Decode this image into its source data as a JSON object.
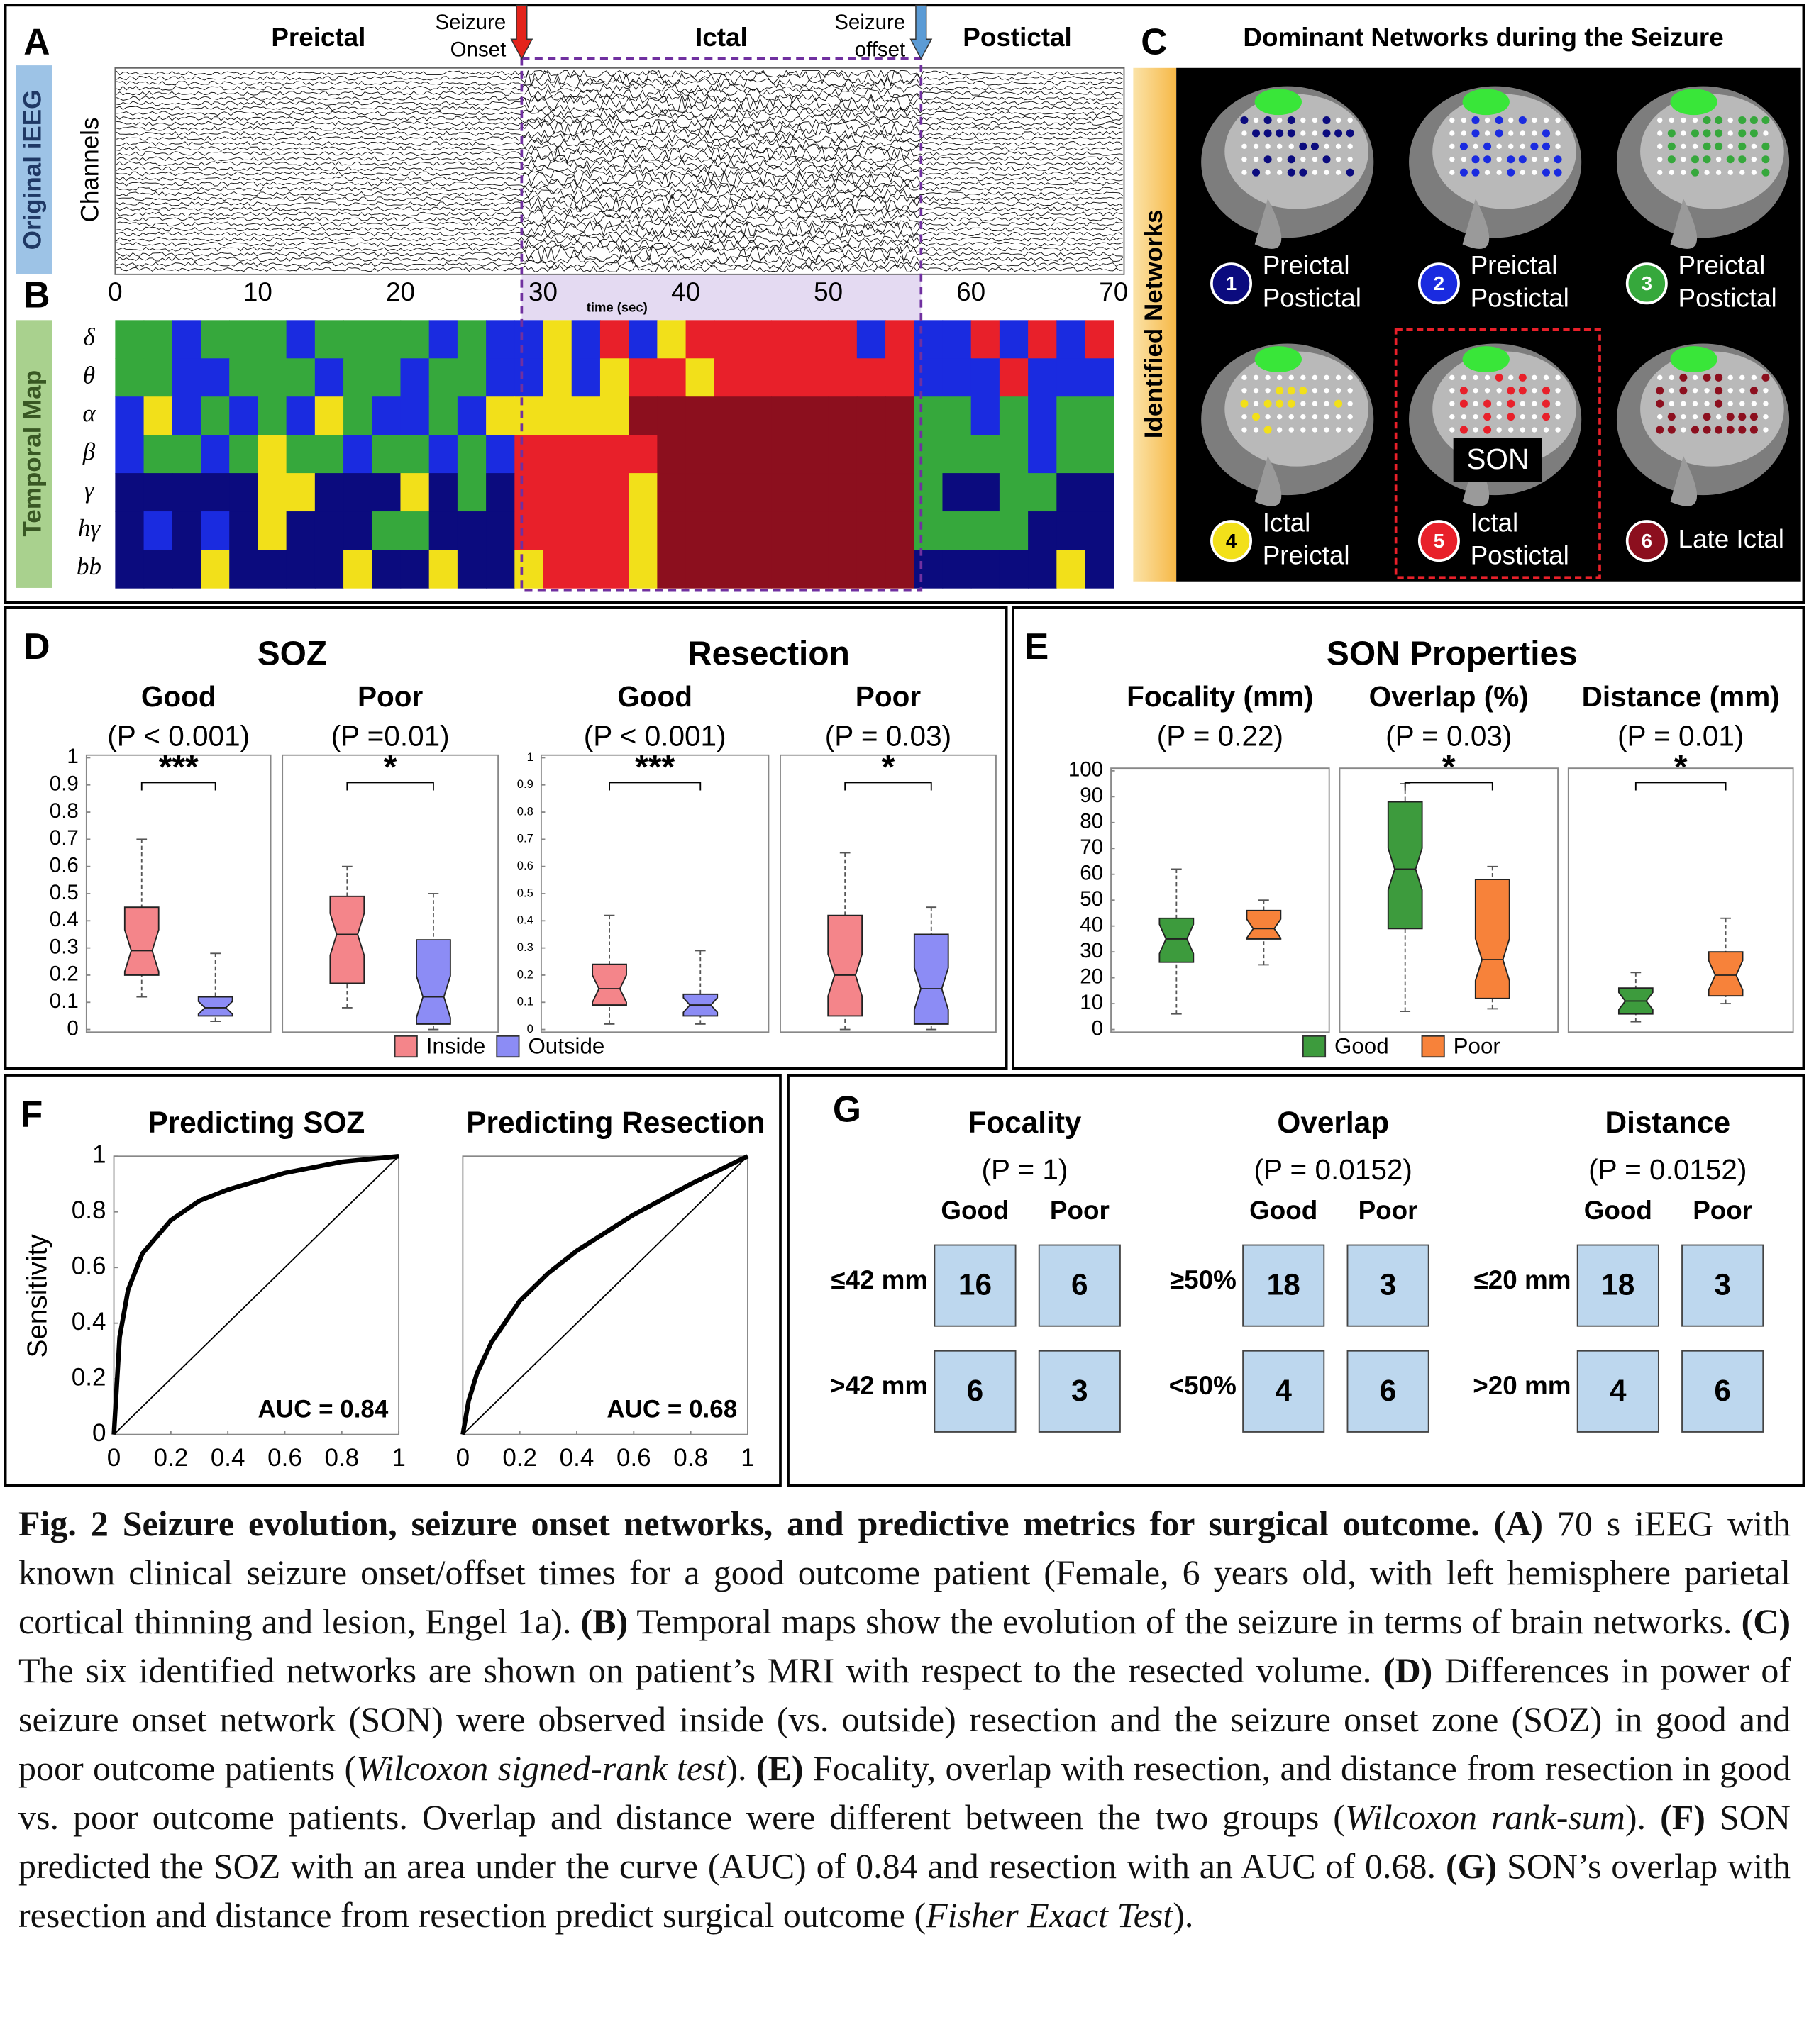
{
  "chart_data": [
    {
      "type": "trace",
      "label": "A",
      "side_label": "Original iEEG",
      "ylabel": "Channels",
      "xlabel": "time (sec)",
      "xlim": [
        0,
        70
      ],
      "xticks": [
        0,
        10,
        20,
        30,
        40,
        50,
        60,
        70
      ],
      "periods": [
        "Preictal",
        "Ictal",
        "Postictal"
      ],
      "onset": {
        "label": [
          "Seizure",
          "Onset"
        ],
        "x": 28.5,
        "color": "#e3241b"
      },
      "offset": {
        "label": [
          "Seizure",
          "offset"
        ],
        "x": 56.5,
        "color": "#5b9bd5"
      }
    },
    {
      "type": "heatmap",
      "label": "B",
      "side_label": "Temporal Map",
      "xlim": [
        0,
        70
      ],
      "rows": [
        "δ",
        "θ",
        "α",
        "β",
        "γ",
        "hγ",
        "bb"
      ],
      "colors": [
        "#0b0b7e",
        "#1a2be0",
        "#36a83c",
        "#f2e01a",
        "#e8202a",
        "#8c0f1e"
      ],
      "values": [
        [
          3,
          3,
          2,
          3,
          3,
          3,
          2,
          3,
          3,
          3,
          3,
          2,
          3,
          2,
          2,
          4,
          2,
          5,
          2,
          4,
          5,
          5,
          5,
          5,
          5,
          5,
          2,
          5,
          2,
          2,
          5,
          2,
          5,
          2,
          5
        ],
        [
          3,
          3,
          2,
          2,
          3,
          3,
          3,
          2,
          3,
          3,
          2,
          3,
          3,
          2,
          2,
          4,
          2,
          4,
          5,
          5,
          4,
          5,
          5,
          5,
          5,
          5,
          5,
          5,
          2,
          2,
          2,
          5,
          2,
          2,
          2
        ],
        [
          2,
          4,
          2,
          3,
          2,
          3,
          2,
          4,
          3,
          2,
          2,
          3,
          2,
          4,
          4,
          4,
          4,
          4,
          6,
          6,
          6,
          6,
          6,
          6,
          6,
          6,
          6,
          6,
          3,
          3,
          2,
          3,
          2,
          3,
          3
        ],
        [
          2,
          3,
          3,
          2,
          3,
          4,
          3,
          3,
          2,
          3,
          3,
          2,
          3,
          2,
          5,
          5,
          5,
          5,
          5,
          6,
          6,
          6,
          6,
          6,
          6,
          6,
          6,
          6,
          3,
          3,
          3,
          3,
          2,
          3,
          3
        ],
        [
          1,
          1,
          1,
          1,
          1,
          4,
          4,
          1,
          1,
          1,
          4,
          1,
          3,
          1,
          5,
          5,
          5,
          5,
          4,
          6,
          6,
          6,
          6,
          6,
          6,
          6,
          6,
          6,
          3,
          1,
          1,
          3,
          3,
          1,
          1
        ],
        [
          1,
          2,
          1,
          2,
          1,
          4,
          1,
          1,
          1,
          3,
          3,
          1,
          1,
          1,
          5,
          5,
          5,
          5,
          4,
          6,
          6,
          6,
          6,
          6,
          6,
          6,
          6,
          6,
          3,
          3,
          3,
          3,
          1,
          1,
          1
        ],
        [
          1,
          1,
          1,
          4,
          1,
          1,
          1,
          1,
          4,
          1,
          1,
          4,
          1,
          1,
          4,
          5,
          5,
          5,
          4,
          6,
          6,
          6,
          6,
          6,
          6,
          6,
          6,
          6,
          1,
          1,
          1,
          1,
          1,
          4,
          1
        ]
      ]
    },
    {
      "type": "box",
      "label": "D",
      "groups": [
        "SOZ",
        "Resection"
      ],
      "categories": [
        "Good",
        "Poor",
        "Good",
        "Poor"
      ],
      "p_values": [
        "(P  < 0.001)",
        "(P =0.01)",
        "(P < 0.001)",
        "(P = 0.03)"
      ],
      "significance": [
        "***",
        "*",
        "***",
        "*"
      ],
      "ylim": [
        0,
        1
      ],
      "yticks": [
        0,
        0.1,
        0.2,
        0.3,
        0.4,
        0.5,
        0.6,
        0.7,
        0.8,
        0.9,
        1
      ],
      "series": [
        {
          "name": "Inside",
          "color": "#f4858a",
          "values": [
            [
              0.12,
              0.2,
              0.29,
              0.45,
              0.7
            ],
            [
              0.08,
              0.17,
              0.35,
              0.49,
              0.6
            ],
            [
              0.02,
              0.09,
              0.15,
              0.24,
              0.42
            ],
            [
              0,
              0.05,
              0.2,
              0.42,
              0.65
            ]
          ]
        },
        {
          "name": "Outside",
          "color": "#8c8cf5",
          "values": [
            [
              0.03,
              0.05,
              0.08,
              0.12,
              0.28
            ],
            [
              0,
              0.02,
              0.12,
              0.33,
              0.5
            ],
            [
              0.02,
              0.05,
              0.09,
              0.13,
              0.29
            ],
            [
              0,
              0.02,
              0.15,
              0.35,
              0.45
            ]
          ]
        }
      ]
    },
    {
      "type": "box",
      "label": "E",
      "title": "SON Properties",
      "categories": [
        "Focality (mm)",
        "Overlap (%)",
        "Distance (mm)"
      ],
      "p_values": [
        "(P = 0.22)",
        "(P = 0.03)",
        "(P = 0.01)"
      ],
      "significance": [
        null,
        "*",
        "*"
      ],
      "ylim": [
        0,
        100
      ],
      "yticks": [
        0,
        10,
        20,
        30,
        40,
        50,
        60,
        70,
        80,
        90,
        100
      ],
      "series": [
        {
          "name": "Good",
          "color": "#3d9b3d",
          "values": [
            [
              6,
              26,
              35,
              43,
              62
            ],
            [
              7,
              39,
              62,
              88,
              95
            ],
            [
              3,
              6,
              11,
              16,
              22
            ]
          ]
        },
        {
          "name": "Poor",
          "color": "#f7823a",
          "values": [
            [
              25,
              35,
              39,
              46,
              50
            ],
            [
              8,
              12,
              27,
              58,
              63
            ],
            [
              10,
              13,
              21,
              30,
              43
            ]
          ]
        }
      ]
    },
    {
      "type": "roc",
      "label": "F",
      "ylabel": "Sensitivity",
      "xlim": [
        0,
        1
      ],
      "ylim": [
        0,
        1
      ],
      "xticks": [
        0,
        0.2,
        0.4,
        0.6,
        0.8,
        1
      ],
      "yticks": [
        0,
        0.2,
        0.4,
        0.6,
        0.8,
        1
      ],
      "subplots": [
        {
          "title": "Predicting SOZ",
          "annotation": "AUC = 0.84",
          "x": [
            0,
            0.02,
            0.05,
            0.1,
            0.2,
            0.3,
            0.4,
            0.6,
            0.8,
            1
          ],
          "values": [
            0,
            0.35,
            0.52,
            0.65,
            0.77,
            0.84,
            0.88,
            0.94,
            0.98,
            1
          ]
        },
        {
          "title": "Predicting Resection",
          "annotation": "AUC = 0.68",
          "x": [
            0,
            0.02,
            0.05,
            0.1,
            0.2,
            0.3,
            0.4,
            0.6,
            0.8,
            1
          ],
          "values": [
            0,
            0.12,
            0.22,
            0.33,
            0.48,
            0.58,
            0.66,
            0.79,
            0.9,
            1
          ]
        }
      ]
    }
  ],
  "networks_panel": {
    "label": "C",
    "title": "Dominant Networks during the Seizure",
    "side_label": "Identified Networks",
    "networks": [
      {
        "number": 1,
        "label": [
          "Preictal",
          "Postictal"
        ]
      },
      {
        "number": 2,
        "label": [
          "Preictal",
          "Postictal"
        ]
      },
      {
        "number": 3,
        "label": [
          "Preictal",
          "Postictal"
        ]
      },
      {
        "number": 4,
        "label": [
          "Ictal",
          "Preictal"
        ]
      },
      {
        "number": 5,
        "label": [
          "Ictal",
          "Postictal"
        ]
      },
      {
        "number": 6,
        "label": [
          "Late Ictal"
        ]
      }
    ],
    "son": {
      "label": "SON",
      "network": 5
    }
  },
  "contingency_panel": {
    "label": "G",
    "tables": [
      {
        "title": "Focality",
        "p": "(P = 1)",
        "columns": [
          "Good",
          "Poor"
        ],
        "rows": [
          {
            "label": "≤42 mm",
            "cells": [
              16,
              6
            ]
          },
          {
            "label": ">42 mm",
            "cells": [
              6,
              3
            ]
          }
        ]
      },
      {
        "title": "Overlap",
        "p": "(P = 0.0152)",
        "columns": [
          "Good",
          "Poor"
        ],
        "rows": [
          {
            "label": "≥50%",
            "cells": [
              18,
              3
            ]
          },
          {
            "label": "<50%",
            "cells": [
              4,
              6
            ]
          }
        ]
      },
      {
        "title": "Distance",
        "p": "(P = 0.0152)",
        "columns": [
          "Good",
          "Poor"
        ],
        "rows": [
          {
            "label": "≤20 mm",
            "cells": [
              18,
              3
            ]
          },
          {
            "label": ">20 mm",
            "cells": [
              4,
              6
            ]
          }
        ]
      }
    ]
  },
  "caption": [
    "Fig. 2 Seizure evolution, seizure onset networks, and predictive metrics for surgical outcome.",
    "(A)",
    "70 s iEEG with known clinical seizure onset/offset times for a good outcome patient (Female, 6 years old, with left hemisphere parietal cortical thinning and lesion, Engel 1a).",
    "(B)",
    "Temporal maps show the evolution of the seizure in terms of brain networks.",
    "(C)",
    "The six identified networks are shown on patient’s MRI with respect to the resected volume.",
    "(D)",
    "Differences in power of seizure onset network (SON) were observed inside (vs. outside) resection and the seizure onset zone (SOZ) in good and poor outcome patients (",
    "Wilcoxon signed-rank test",
    ").",
    "(E)",
    "Focality, overlap with resection, and distance from resection in good vs. poor outcome patients. Overlap and distance were different between the two groups (",
    "Wilcoxon rank-sum",
    ").",
    "(F)",
    "SON predicted the SOZ with an area under the curve (AUC) of 0.84 and resection with an AUC of 0.68.",
    "(G)",
    "SON’s overlap with resection and distance from resection predict surgical outcome (",
    "Fisher Exact Test",
    ")."
  ]
}
